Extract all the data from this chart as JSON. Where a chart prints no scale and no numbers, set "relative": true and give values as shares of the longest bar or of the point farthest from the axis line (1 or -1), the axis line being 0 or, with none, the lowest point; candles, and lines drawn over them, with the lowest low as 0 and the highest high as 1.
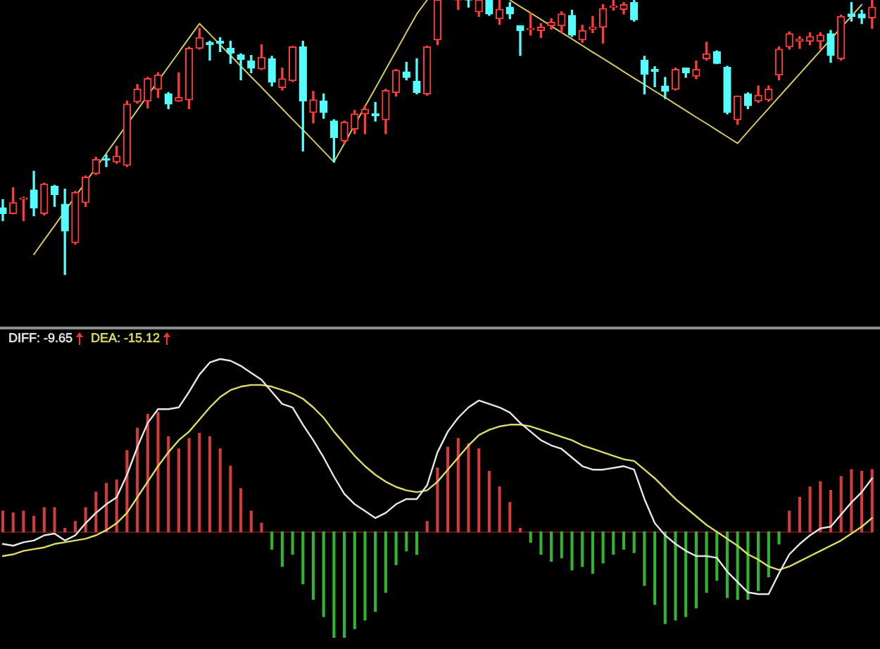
{
  "chart_data": [
    {
      "type": "candlestick",
      "relative": true,
      "categories": [
        null,
        null,
        null,
        null,
        null,
        null,
        null,
        null,
        null,
        null,
        null,
        null,
        null,
        null,
        null,
        null,
        null,
        null,
        null,
        null,
        null,
        null,
        null,
        null,
        null,
        null,
        null,
        null,
        null,
        null,
        null,
        null,
        null,
        null,
        null,
        null,
        null,
        null,
        null,
        null,
        null,
        null,
        null,
        null,
        null,
        null,
        null,
        null,
        null,
        null,
        null,
        null,
        null,
        null,
        null,
        null,
        null,
        null,
        null,
        null,
        null,
        null,
        null,
        null,
        null,
        null,
        null,
        null,
        null,
        null,
        null,
        null,
        null,
        null,
        null,
        null,
        null,
        null,
        null,
        null,
        null,
        null,
        null,
        null,
        null
      ],
      "ohlc": [
        [
          0.243,
          0.273,
          0.196,
          0.222
        ],
        [
          0.222,
          0.316,
          0.221,
          0.262
        ],
        [
          0.274,
          0.282,
          0.196,
          0.277
        ],
        [
          0.308,
          0.376,
          0.214,
          0.243
        ],
        [
          0.222,
          0.333,
          0.217,
          0.33
        ],
        [
          0.322,
          0.325,
          0.248,
          0.291
        ],
        [
          0.256,
          0.311,
          0,
          0.159
        ],
        [
          0.116,
          0.303,
          0.111,
          0.299
        ],
        [
          0.262,
          0.359,
          0.248,
          0.355
        ],
        [
          0.368,
          0.427,
          0.364,
          0.419
        ],
        [
          0.422,
          0.436,
          0.393,
          0.417
        ],
        [
          0.41,
          0.467,
          0.405,
          0.431
        ],
        [
          0.398,
          0.632,
          0.393,
          0.621
        ],
        [
          0.629,
          0.692,
          0.624,
          0.675
        ],
        [
          0.632,
          0.718,
          0.607,
          0.714
        ],
        [
          0.675,
          0.735,
          0.645,
          0.727
        ],
        [
          0.658,
          0.663,
          0.604,
          0.621
        ],
        [
          0.632,
          0.735,
          0.631,
          0.645
        ],
        [
          0.636,
          0.829,
          0.604,
          0.824
        ],
        [
          0.824,
          0.897,
          0.821,
          0.863
        ],
        [
          0.846,
          0.85,
          0.781,
          0.837
        ],
        [
          0.85,
          0.863,
          0.812,
          0.843
        ],
        [
          0.824,
          0.85,
          0.769,
          0.807
        ],
        [
          0.8,
          0.804,
          0.709,
          0.783
        ],
        [
          0.778,
          0.798,
          0.735,
          0.752
        ],
        [
          0.749,
          0.837,
          0.747,
          0.791
        ],
        [
          0.786,
          0.795,
          0.687,
          0.701
        ],
        [
          0.681,
          0.752,
          0.672,
          0.713
        ],
        [
          0.706,
          0.831,
          0.703,
          0.829
        ],
        [
          0.829,
          0.85,
          0.45,
          0.632
        ],
        [
          0.59,
          0.667,
          0.552,
          0.636
        ],
        [
          0.632,
          0.658,
          0.569,
          0.59
        ],
        [
          0.559,
          0.564,
          0.409,
          0.499
        ],
        [
          0.487,
          0.559,
          0.478,
          0.555
        ],
        [
          0.53,
          0.598,
          0.513,
          0.585
        ],
        [
          0.585,
          0.615,
          0.513,
          0.602
        ],
        [
          0.586,
          0.627,
          0.559,
          0.578
        ],
        [
          0.564,
          0.675,
          0.513,
          0.67
        ],
        [
          0.663,
          0.747,
          0.65,
          0.744
        ],
        [
          0.738,
          0.773,
          0.709,
          0.718
        ],
        [
          0.704,
          0.786,
          0.658,
          0.663
        ],
        [
          0.658,
          0.832,
          0.653,
          0.829
        ],
        [
          0.855,
          1,
          0.837,
          1
        ],
        null,
        [
          1,
          1,
          0.966,
          1
        ],
        [
          1,
          1,
          0.974,
          1
        ],
        [
          0.957,
          1,
          0.94,
          1
        ],
        [
          1,
          1,
          0.944,
          0.949
        ],
        [
          0.932,
          1,
          0.911,
          0.966
        ],
        [
          0.974,
          0.991,
          0.932,
          0.949
        ],
        [
          0.906,
          0.906,
          0.798,
          0.889
        ],
        [
          0.892,
          0.952,
          0.872,
          0.897
        ],
        [
          0.889,
          0.914,
          0.863,
          0.901
        ],
        [
          0.906,
          0.932,
          0.894,
          0.919
        ],
        [
          0.906,
          0.957,
          0.881,
          0.949
        ],
        [
          0.944,
          0.963,
          0.867,
          0.872
        ],
        [
          0.855,
          0.908,
          0.846,
          0.889
        ],
        [
          0.894,
          0.94,
          0.881,
          0.901
        ],
        [
          0.901,
          0.983,
          0.843,
          0.969
        ],
        [
          0.973,
          1,
          0.963,
          0.978
        ],
        [
          0.966,
          0.991,
          0.949,
          0.983
        ],
        [
          0.991,
          1,
          0.923,
          0.928
        ],
        [
          0.781,
          0.795,
          0.658,
          0.73
        ],
        [
          0.747,
          0.757,
          0.684,
          0.74
        ],
        [
          0.687,
          0.718,
          0.641,
          0.667
        ],
        [
          0.675,
          0.752,
          0.672,
          0.747
        ],
        [
          0.752,
          0.752,
          0.718,
          0.735
        ],
        [
          0.723,
          0.778,
          0.713,
          0.747
        ],
        [
          0.786,
          0.846,
          0.781,
          0.804
        ],
        [
          0.812,
          0.815,
          0.768,
          0.769
        ],
        [
          0.755,
          0.759,
          0.585,
          0.59
        ],
        [
          0.564,
          0.65,
          0.547,
          0.65
        ],
        [
          0.658,
          0.662,
          0.604,
          0.615
        ],
        [
          0.632,
          0.687,
          0.627,
          0.653
        ],
        [
          0.636,
          0.687,
          0.631,
          0.675
        ],
        [
          0.727,
          0.829,
          0.709,
          0.821
        ],
        [
          0.829,
          0.884,
          0.821,
          0.877
        ],
        [
          0.85,
          0.867,
          0.824,
          0.858
        ],
        [
          0.85,
          0.881,
          0.837,
          0.867
        ],
        [
          0.85,
          0.881,
          0.821,
          0.872
        ],
        [
          0.877,
          0.889,
          0.773,
          0.798
        ],
        [
          0.786,
          0.945,
          0.781,
          0.94
        ],
        [
          0.949,
          0.991,
          0.923,
          0.94
        ],
        [
          0.949,
          0.963,
          0.914,
          0.935
        ],
        [
          0.935,
          1,
          0.897,
          0.974
        ]
      ],
      "colors": [
        "#54fcfc",
        "#ff3c3c",
        "#ff3c3c",
        "#54fcfc",
        "#ff3c3c",
        "#54fcfc",
        "#54fcfc",
        "#ff3c3c",
        "#ff3c3c",
        "#ff3c3c",
        "#54fcfc",
        "#ff3c3c",
        "#ff3c3c",
        "#ff3c3c",
        "#ff3c3c",
        "#ff3c3c",
        "#54fcfc",
        "#ff3c3c",
        "#ff3c3c",
        "#ff3c3c",
        "#54fcfc",
        "#54fcfc",
        "#54fcfc",
        "#54fcfc",
        "#54fcfc",
        "#ff3c3c",
        "#54fcfc",
        "#ff3c3c",
        "#ff3c3c",
        "#54fcfc",
        "#ff3c3c",
        "#54fcfc",
        "#54fcfc",
        "#ff3c3c",
        "#ff3c3c",
        "#ff3c3c",
        "#54fcfc",
        "#ff3c3c",
        "#ff3c3c",
        "#54fcfc",
        "#54fcfc",
        "#ff3c3c",
        "#ff3c3c",
        null,
        "#ff3c3c",
        "#54fcfc",
        "#ff3c3c",
        "#54fcfc",
        "#ff3c3c",
        "#54fcfc",
        "#54fcfc",
        "#ff3c3c",
        "#ff3c3c",
        "#ff3c3c",
        "#ff3c3c",
        "#54fcfc",
        "#ff3c3c",
        "#ff3c3c",
        "#ff3c3c",
        "#ff3c3c",
        "#ff3c3c",
        "#54fcfc",
        "#54fcfc",
        "#54fcfc",
        "#54fcfc",
        "#ff3c3c",
        "#54fcfc",
        "#ff3c3c",
        "#ff3c3c",
        "#54fcfc",
        "#54fcfc",
        "#ff3c3c",
        "#54fcfc",
        "#ff3c3c",
        "#ff3c3c",
        "#ff3c3c",
        "#ff3c3c",
        "#ff3c3c",
        "#ff3c3c",
        "#ff3c3c",
        "#54fcfc",
        "#ff3c3c",
        "#54fcfc",
        "#54fcfc",
        "#ff3c3c"
      ],
      "series": [
        {
          "type": "line",
          "color": "#d2c864",
          "values": [
            null,
            null,
            null,
            0.073,
            0.126,
            0.178,
            0.231,
            0.284,
            0.336,
            0.389,
            0.441,
            0.494,
            0.546,
            0.599,
            0.652,
            0.704,
            0.757,
            0.809,
            0.862,
            0.914,
            0.876,
            0.837,
            0.798,
            0.759,
            0.72,
            0.682,
            0.643,
            0.604,
            0.565,
            0.527,
            0.488,
            0.449,
            0.41,
            0.477,
            0.545,
            0.612,
            0.679,
            0.747,
            0.814,
            0.882,
            0.949,
            1,
            null,
            null,
            null,
            null,
            null,
            null,
            null,
            1,
            0.976,
            0.953,
            0.929,
            0.905,
            0.881,
            0.858,
            0.834,
            0.81,
            0.787,
            0.763,
            0.739,
            0.715,
            0.692,
            0.668,
            0.645,
            0.621,
            0.597,
            0.573,
            0.55,
            0.526,
            0.502,
            0.478,
            0.521,
            0.563,
            0.605,
            0.647,
            0.689,
            0.731,
            0.773,
            0.815,
            0.857,
            0.899,
            0.941,
            0.983,
            null
          ]
        }
      ]
    },
    {
      "type": "line",
      "relative": true,
      "legend": "top left",
      "categories": [
        null,
        null,
        null,
        null,
        null,
        null,
        null,
        null,
        null,
        null,
        null,
        null,
        null,
        null,
        null,
        null,
        null,
        null,
        null,
        null,
        null,
        null,
        null,
        null,
        null,
        null,
        null,
        null,
        null,
        null,
        null,
        null,
        null,
        null,
        null,
        null,
        null,
        null,
        null,
        null,
        null,
        null,
        null,
        null,
        null,
        null,
        null,
        null,
        null,
        null,
        null,
        null,
        null,
        null,
        null,
        null,
        null,
        null,
        null,
        null,
        null,
        null,
        null,
        null,
        null,
        null,
        null,
        null,
        null,
        null,
        null,
        null,
        null,
        null,
        null,
        null,
        null,
        null,
        null,
        null,
        null,
        null,
        null,
        null,
        null
      ],
      "series": [
        {
          "type": "bar",
          "values": [
            0.12,
            0.11,
            0.12,
            0.09,
            0.14,
            0.14,
            0.02,
            0.06,
            0.14,
            0.23,
            0.28,
            0.3,
            0.47,
            0.6,
            0.68,
            0.69,
            0.55,
            0.48,
            0.54,
            0.57,
            0.55,
            0.48,
            0.38,
            0.25,
            0.12,
            0.05,
            -0.1,
            -0.2,
            -0.13,
            -0.3,
            -0.39,
            -0.49,
            -0.61,
            -0.61,
            -0.56,
            -0.51,
            -0.46,
            -0.35,
            -0.19,
            -0.11,
            -0.13,
            0.06,
            0.37,
            0.49,
            0.54,
            0.51,
            0.48,
            0.35,
            0.26,
            0.17,
            0.02,
            -0.06,
            -0.13,
            -0.17,
            -0.15,
            -0.22,
            -0.2,
            -0.24,
            -0.18,
            -0.13,
            -0.1,
            -0.12,
            -0.31,
            -0.42,
            -0.53,
            -0.51,
            -0.49,
            -0.44,
            -0.35,
            -0.28,
            -0.38,
            -0.39,
            -0.39,
            -0.34,
            -0.26,
            -0.07,
            0.12,
            0.2,
            0.26,
            0.29,
            0.24,
            0.32,
            0.36,
            0.35,
            0.36
          ],
          "colors": [
            "#d23c3c",
            "#d23c3c",
            "#d23c3c",
            "#d23c3c",
            "#d23c3c",
            "#d23c3c",
            "#d23c3c",
            "#d23c3c",
            "#d23c3c",
            "#d23c3c",
            "#d23c3c",
            "#d23c3c",
            "#d23c3c",
            "#d23c3c",
            "#d23c3c",
            "#d23c3c",
            "#d23c3c",
            "#d23c3c",
            "#d23c3c",
            "#d23c3c",
            "#d23c3c",
            "#d23c3c",
            "#d23c3c",
            "#d23c3c",
            "#d23c3c",
            "#d23c3c",
            "#32b432",
            "#32b432",
            "#32b432",
            "#32b432",
            "#32b432",
            "#32b432",
            "#32b432",
            "#32b432",
            "#32b432",
            "#32b432",
            "#32b432",
            "#32b432",
            "#32b432",
            "#32b432",
            "#32b432",
            "#d23c3c",
            "#d23c3c",
            "#d23c3c",
            "#d23c3c",
            "#d23c3c",
            "#d23c3c",
            "#d23c3c",
            "#d23c3c",
            "#d23c3c",
            "#d23c3c",
            "#32b432",
            "#32b432",
            "#32b432",
            "#32b432",
            "#32b432",
            "#32b432",
            "#32b432",
            "#32b432",
            "#32b432",
            "#32b432",
            "#32b432",
            "#32b432",
            "#32b432",
            "#32b432",
            "#32b432",
            "#32b432",
            "#32b432",
            "#32b432",
            "#32b432",
            "#32b432",
            "#32b432",
            "#32b432",
            "#32b432",
            "#32b432",
            "#32b432",
            "#d23c3c",
            "#d23c3c",
            "#d23c3c",
            "#d23c3c",
            "#d23c3c",
            "#d23c3c",
            "#d23c3c",
            "#d23c3c",
            "#d23c3c"
          ]
        },
        {
          "name": "DIFF: -9.65",
          "color": "#e6e6e6",
          "values": [
            -0.07,
            -0.08,
            -0.06,
            -0.05,
            -0.02,
            -0.01,
            -0.05,
            -0.02,
            0.05,
            0.11,
            0.16,
            0.2,
            0.33,
            0.49,
            0.63,
            0.71,
            0.71,
            0.72,
            0.81,
            0.91,
            0.98,
            1.0,
            0.99,
            0.96,
            0.92,
            0.88,
            0.81,
            0.74,
            0.72,
            0.62,
            0.53,
            0.43,
            0.32,
            0.22,
            0.16,
            0.12,
            0.08,
            0.11,
            0.16,
            0.19,
            0.19,
            0.27,
            0.46,
            0.58,
            0.66,
            0.72,
            0.76,
            0.74,
            0.72,
            0.69,
            0.63,
            0.58,
            0.53,
            0.5,
            0.48,
            0.43,
            0.38,
            0.36,
            0.36,
            0.37,
            0.38,
            0.36,
            0.19,
            0.05,
            -0.02,
            -0.07,
            -0.11,
            -0.14,
            -0.14,
            -0.15,
            -0.23,
            -0.29,
            -0.35,
            -0.36,
            -0.36,
            -0.24,
            -0.13,
            -0.07,
            -0.02,
            0.02,
            0.03,
            0.1,
            0.17,
            0.23,
            0.31
          ]
        },
        {
          "name": "DEA: -15.12",
          "color": "#dcdc64",
          "values": [
            -0.14,
            -0.13,
            -0.11,
            -0.1,
            -0.09,
            -0.07,
            -0.06,
            -0.05,
            -0.04,
            -0.02,
            0.01,
            0.05,
            0.11,
            0.2,
            0.29,
            0.38,
            0.46,
            0.53,
            0.58,
            0.65,
            0.72,
            0.78,
            0.82,
            0.84,
            0.85,
            0.85,
            0.84,
            0.82,
            0.8,
            0.77,
            0.72,
            0.66,
            0.58,
            0.51,
            0.44,
            0.38,
            0.33,
            0.29,
            0.26,
            0.24,
            0.23,
            0.24,
            0.29,
            0.36,
            0.43,
            0.5,
            0.56,
            0.59,
            0.61,
            0.62,
            0.62,
            0.61,
            0.59,
            0.57,
            0.55,
            0.53,
            0.5,
            0.48,
            0.46,
            0.44,
            0.42,
            0.41,
            0.36,
            0.31,
            0.25,
            0.19,
            0.14,
            0.09,
            0.04,
            0.0,
            -0.04,
            -0.08,
            -0.13,
            -0.16,
            -0.2,
            -0.22,
            -0.2,
            -0.17,
            -0.14,
            -0.11,
            -0.08,
            -0.05,
            -0.01,
            0.03,
            0.08
          ]
        }
      ]
    }
  ]
}
